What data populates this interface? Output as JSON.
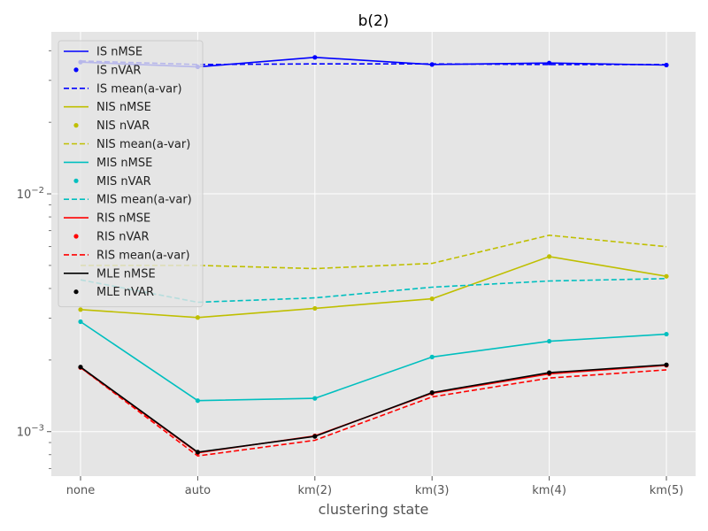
{
  "chart_data": {
    "type": "line",
    "title": "b(2)",
    "xlabel": "clustering state",
    "ylabel": "",
    "yscale": "log",
    "ylim": [
      0.00065,
      0.048
    ],
    "grid": true,
    "legend_placement": "top-left",
    "categories": [
      "none",
      "auto",
      "km(2)",
      "km(3)",
      "km(4)",
      "km(5)"
    ],
    "y_ticks": [
      {
        "value": 0.001,
        "base": "10",
        "exp": "−3"
      },
      {
        "value": 0.01,
        "base": "10",
        "exp": "−2"
      }
    ],
    "series": [
      {
        "name": "IS nMSE",
        "method": "IS",
        "kind": "nMSE",
        "color": "#0000ff",
        "values": [
          0.0358,
          0.0342,
          0.0375,
          0.035,
          0.0355,
          0.0348
        ]
      },
      {
        "name": "IS nVAR",
        "method": "IS",
        "kind": "nVAR",
        "color": "#0000ff",
        "values": [
          0.0358,
          0.0342,
          0.0375,
          0.035,
          0.0355,
          0.0348
        ]
      },
      {
        "name": "IS mean(a-var)",
        "method": "IS",
        "kind": "mean",
        "color": "#0000ff",
        "values": [
          0.0362,
          0.035,
          0.0352,
          0.0352,
          0.035,
          0.035
        ]
      },
      {
        "name": "NIS nMSE",
        "method": "NIS",
        "kind": "nMSE",
        "color": "#bfbf00",
        "values": [
          0.00326,
          0.00302,
          0.0033,
          0.00362,
          0.00545,
          0.0045
        ]
      },
      {
        "name": "NIS nVAR",
        "method": "NIS",
        "kind": "nVAR",
        "color": "#bfbf00",
        "values": [
          0.00326,
          0.00302,
          0.0033,
          0.00362,
          0.00545,
          0.0045
        ]
      },
      {
        "name": "NIS mean(a-var)",
        "method": "NIS",
        "kind": "mean",
        "color": "#bfbf00",
        "values": [
          0.005,
          0.005,
          0.00485,
          0.0051,
          0.0067,
          0.006
        ]
      },
      {
        "name": "MIS nMSE",
        "method": "MIS",
        "kind": "nMSE",
        "color": "#00bfbf",
        "values": [
          0.0029,
          0.00135,
          0.00138,
          0.00206,
          0.0024,
          0.00257
        ]
      },
      {
        "name": "MIS nVAR",
        "method": "MIS",
        "kind": "nVAR",
        "color": "#00bfbf",
        "values": [
          0.0029,
          0.00135,
          0.00138,
          0.00206,
          0.0024,
          0.00257
        ]
      },
      {
        "name": "MIS mean(a-var)",
        "method": "MIS",
        "kind": "mean",
        "color": "#00bfbf",
        "values": [
          0.00435,
          0.0035,
          0.00365,
          0.00405,
          0.0043,
          0.0044
        ]
      },
      {
        "name": "RIS nMSE",
        "method": "RIS",
        "kind": "nMSE",
        "color": "#ff0000",
        "values": [
          0.00186,
          0.000815,
          0.00096,
          0.00145,
          0.00175,
          0.0019
        ]
      },
      {
        "name": "RIS nVAR",
        "method": "RIS",
        "kind": "nVAR",
        "color": "#ff0000",
        "values": [
          0.00186,
          0.000815,
          0.00096,
          0.00145,
          0.00175,
          0.0019
        ]
      },
      {
        "name": "RIS mean(a-var)",
        "method": "RIS",
        "kind": "mean",
        "color": "#ff0000",
        "values": [
          0.00186,
          0.00079,
          0.00092,
          0.0014,
          0.00168,
          0.00182
        ]
      },
      {
        "name": "MLE nMSE",
        "method": "MLE",
        "kind": "nMSE",
        "color": "#000000",
        "values": [
          0.00187,
          0.00082,
          0.000955,
          0.00146,
          0.00177,
          0.00191
        ]
      },
      {
        "name": "MLE nVAR",
        "method": "MLE",
        "kind": "nVAR",
        "color": "#000000",
        "values": [
          0.00187,
          0.00082,
          0.000955,
          0.00146,
          0.00177,
          0.00191
        ]
      }
    ]
  }
}
